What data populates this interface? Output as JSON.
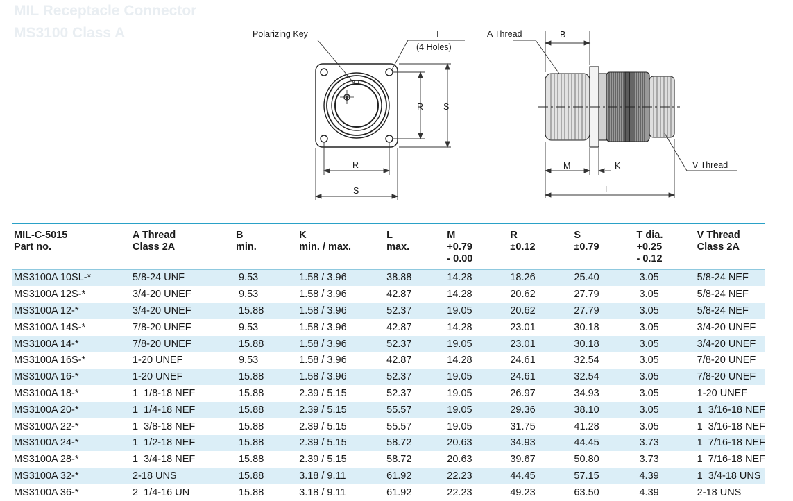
{
  "header": {
    "title": "MIL Receptacle Connector",
    "subtitle": "MS3100 Class A"
  },
  "drawing": {
    "polarizing_key": "Polarizing  Key",
    "t_label": "T",
    "t_holes": "(4  Holes)",
    "r_label": "R",
    "s_label": "S",
    "a_thread": "A  Thread",
    "b_label": "B",
    "m_label": "M",
    "k_label": "K",
    "l_label": "L",
    "v_thread": "V  Thread"
  },
  "table": {
    "headers": [
      [
        "MIL-C-5015",
        "Part no."
      ],
      [
        "A Thread",
        "Class 2A"
      ],
      [
        "B",
        "min."
      ],
      [
        "K",
        "min. / max."
      ],
      [
        "L",
        "max."
      ],
      [
        "M",
        "+0.79",
        "- 0.00"
      ],
      [
        "R",
        "±0.12"
      ],
      [
        "S",
        "±0.79"
      ],
      [
        "T dia.",
        "+0.25",
        "- 0.12"
      ],
      [
        "V Thread",
        "Class 2A"
      ]
    ],
    "rows": [
      [
        "MS3100A 10SL-*",
        "5/8-24 UNF",
        "9.53",
        "1.58 / 3.96",
        "38.88",
        "14.28",
        "18.26",
        "25.40",
        "3.05",
        "5/8-24 NEF"
      ],
      [
        "MS3100A 12S-*",
        "3/4-20 UNEF",
        "9.53",
        "1.58 / 3.96",
        "42.87",
        "14.28",
        "20.62",
        "27.79",
        "3.05",
        "5/8-24 NEF"
      ],
      [
        "MS3100A 12-*",
        "3/4-20 UNEF",
        "15.88",
        "1.58 / 3.96",
        "52.37",
        "19.05",
        "20.62",
        "27.79",
        "3.05",
        "5/8-24 NEF"
      ],
      [
        "MS3100A 14S-*",
        "7/8-20 UNEF",
        "9.53",
        "1.58 / 3.96",
        "42.87",
        "14.28",
        "23.01",
        "30.18",
        "3.05",
        "3/4-20 UNEF"
      ],
      [
        "MS3100A 14-*",
        "7/8-20 UNEF",
        "15.88",
        "1.58 / 3.96",
        "52.37",
        "19.05",
        "23.01",
        "30.18",
        "3.05",
        "3/4-20 UNEF"
      ],
      [
        "MS3100A 16S-*",
        "1-20 UNEF",
        "9.53",
        "1.58 / 3.96",
        "42.87",
        "14.28",
        "24.61",
        "32.54",
        "3.05",
        "7/8-20 UNEF"
      ],
      [
        "MS3100A 16-*",
        "1-20 UNEF",
        "15.88",
        "1.58 / 3.96",
        "52.37",
        "19.05",
        "24.61",
        "32.54",
        "3.05",
        "7/8-20 UNEF"
      ],
      [
        "MS3100A 18-*",
        "1  1/8-18 NEF",
        "15.88",
        "2.39 / 5.15",
        "52.37",
        "19.05",
        "26.97",
        "34.93",
        "3.05",
        "1-20 UNEF"
      ],
      [
        "MS3100A 20-*",
        "1  1/4-18 NEF",
        "15.88",
        "2.39 / 5.15",
        "55.57",
        "19.05",
        "29.36",
        "38.10",
        "3.05",
        "1  3/16-18 NEF"
      ],
      [
        "MS3100A 22-*",
        "1  3/8-18 NEF",
        "15.88",
        "2.39 / 5.15",
        "55.57",
        "19.05",
        "31.75",
        "41.28",
        "3.05",
        "1  3/16-18 NEF"
      ],
      [
        "MS3100A 24-*",
        "1  1/2-18 NEF",
        "15.88",
        "2.39 / 5.15",
        "58.72",
        "20.63",
        "34.93",
        "44.45",
        "3.73",
        "1  7/16-18 NEF"
      ],
      [
        "MS3100A 28-*",
        "1  3/4-18 NEF",
        "15.88",
        "2.39 / 5.15",
        "58.72",
        "20.63",
        "39.67",
        "50.80",
        "3.73",
        "1  7/16-18 NEF"
      ],
      [
        "MS3100A 32-*",
        "2-18 UNS",
        "15.88",
        "3.18 / 9.11",
        "61.92",
        "22.23",
        "44.45",
        "57.15",
        "4.39",
        "1  3/4-18 UNS"
      ],
      [
        "MS3100A 36-*",
        "2  1/4-16 UN",
        "15.88",
        "3.18 / 9.11",
        "61.92",
        "22.23",
        "49.23",
        "63.50",
        "4.39",
        "2-18 UNS"
      ]
    ]
  }
}
